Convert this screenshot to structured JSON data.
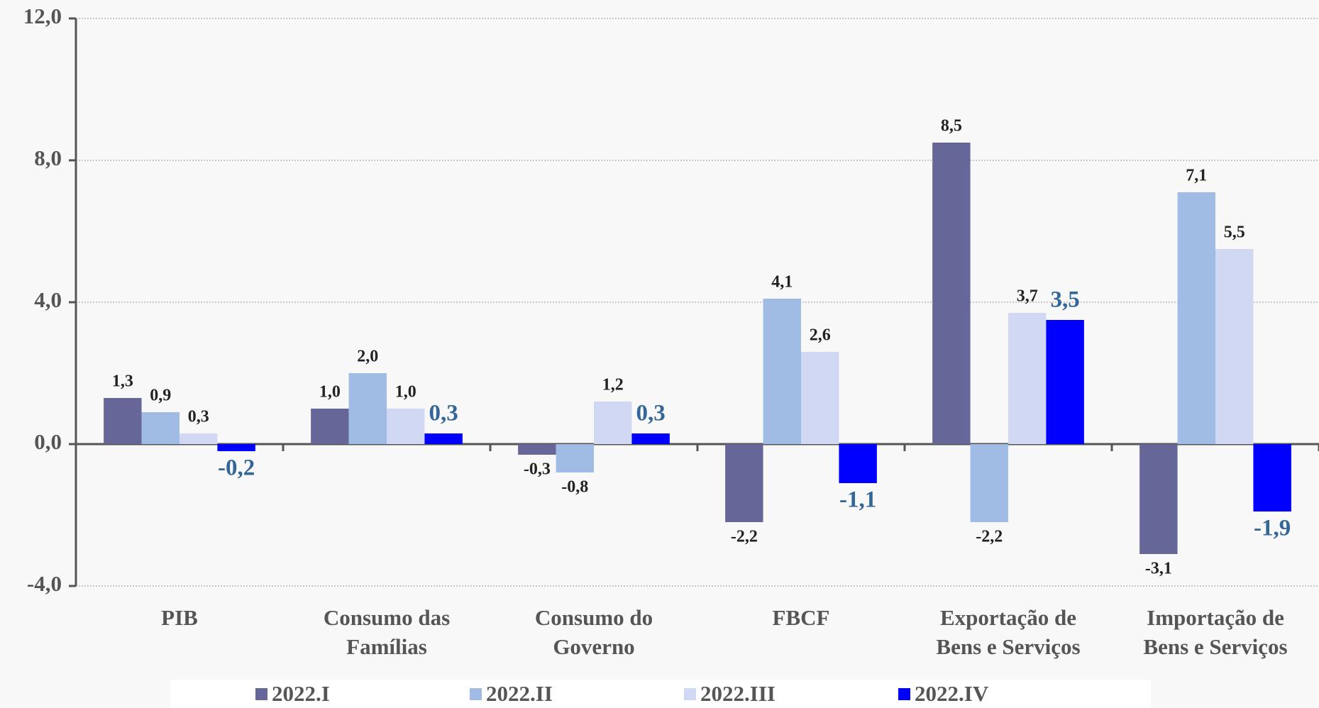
{
  "chart_data": {
    "type": "bar",
    "categories": [
      "PIB",
      "Consumo das Famílias",
      "Consumo do Governo",
      "FBCF",
      "Exportação de Bens e Serviços",
      "Importação de Bens e Serviços"
    ],
    "series": [
      {
        "name": "2022.I",
        "color": "#666699",
        "values": [
          1.3,
          1.0,
          -0.3,
          -2.2,
          8.5,
          -3.1
        ],
        "value_labels": [
          "1,3",
          "1,0",
          "-0,3",
          "-2,2",
          "8,5",
          "-3,1"
        ]
      },
      {
        "name": "2022.II",
        "color": "#a0bce4",
        "values": [
          0.9,
          2.0,
          -0.8,
          4.1,
          -2.2,
          7.1
        ],
        "value_labels": [
          "0,9",
          "2,0",
          "-0,8",
          "4,1",
          "-2,2",
          "7,1"
        ]
      },
      {
        "name": "2022.III",
        "color": "#d0d8f4",
        "values": [
          0.3,
          1.0,
          1.2,
          2.6,
          3.7,
          5.5
        ],
        "value_labels": [
          "0,3",
          "1,0",
          "1,2",
          "2,6",
          "3,7",
          "5,5"
        ]
      },
      {
        "name": "2022.IV",
        "color": "#0000ff",
        "values": [
          -0.2,
          0.3,
          0.3,
          -1.1,
          3.5,
          -1.9
        ],
        "value_labels": [
          "-0,2",
          "0,3",
          "0,3",
          "-1,1",
          "3,5",
          "-1,9"
        ]
      }
    ],
    "ylim": [
      -4,
      12
    ],
    "yticks": [
      {
        "value": -4,
        "label": "-4,0"
      },
      {
        "value": 0,
        "label": "0,0"
      },
      {
        "value": 4,
        "label": "4,0"
      },
      {
        "value": 8,
        "label": "8,0"
      },
      {
        "value": 12,
        "label": "12,0"
      }
    ],
    "grid": true,
    "legend": "bottom"
  }
}
